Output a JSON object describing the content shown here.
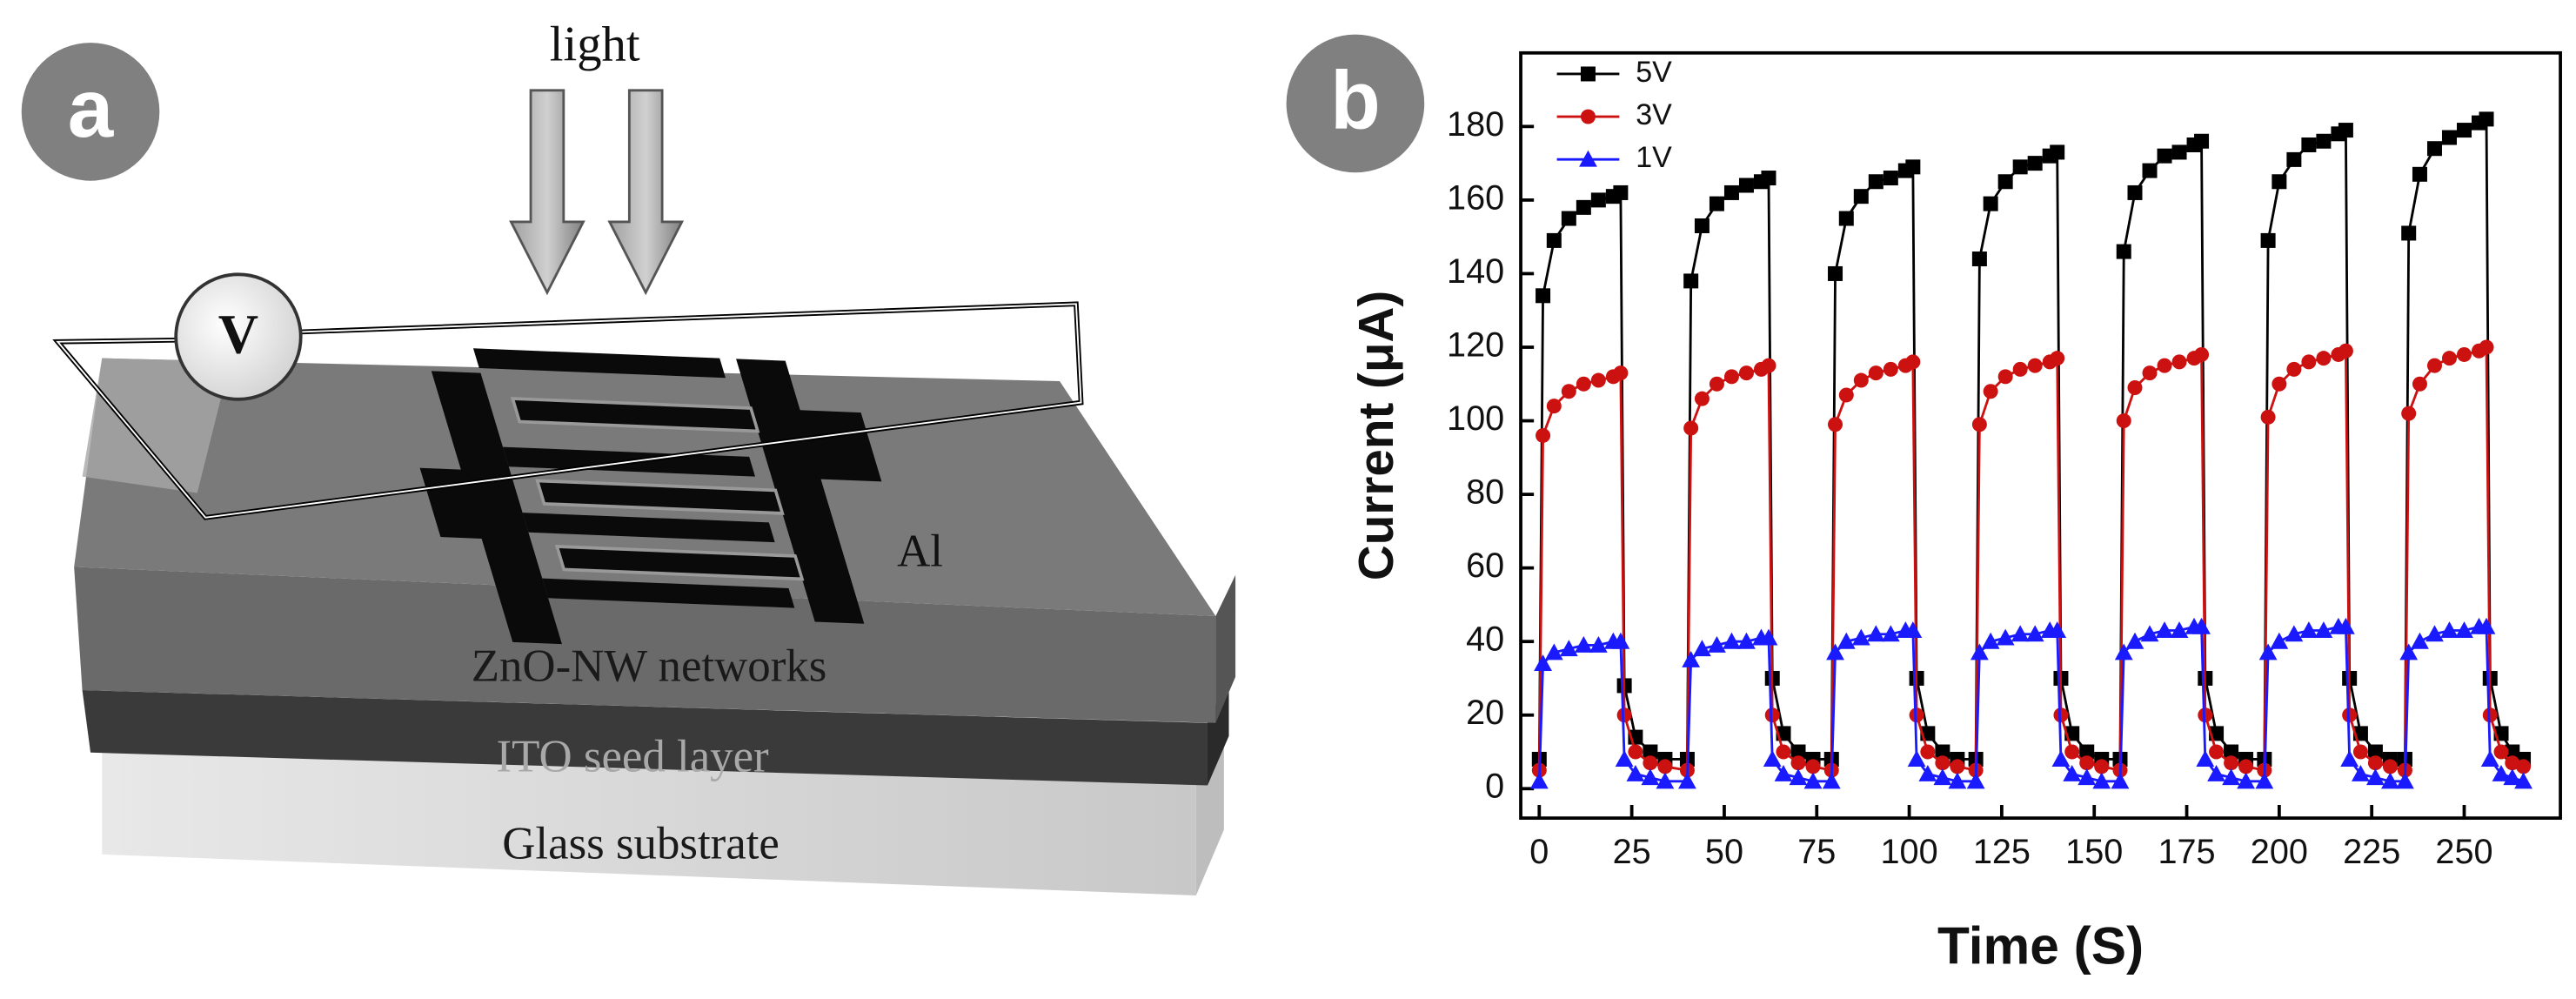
{
  "panel_labels": [
    "a",
    "b"
  ],
  "diagram": {
    "light": "light",
    "voltmeter": "V",
    "electrode": "Al",
    "layers": [
      "ZnO-NW networks",
      "ITO seed layer",
      "Glass substrate"
    ]
  },
  "chart_data": {
    "type": "line",
    "x_label": "Time (S)",
    "y_label": "Current (μA)",
    "xlim": [
      -5,
      276
    ],
    "xticks": [
      0,
      25,
      50,
      75,
      100,
      125,
      150,
      175,
      200,
      225,
      250
    ],
    "ylim": [
      -8,
      200
    ],
    "yticks": [
      0,
      20,
      40,
      60,
      80,
      100,
      120,
      140,
      160,
      180
    ],
    "legend": "upper left",
    "x": [
      0,
      1,
      4,
      8,
      12,
      16,
      20,
      22,
      23,
      26,
      30,
      34,
      40,
      41,
      44,
      48,
      52,
      56,
      60,
      62,
      63,
      66,
      70,
      74,
      79,
      80,
      83,
      87,
      91,
      95,
      99,
      101,
      102,
      105,
      109,
      113,
      118,
      119,
      122,
      126,
      130,
      134,
      138,
      140,
      141,
      144,
      148,
      152,
      157,
      158,
      161,
      165,
      169,
      173,
      177,
      179,
      180,
      183,
      187,
      191,
      196,
      197,
      200,
      204,
      208,
      212,
      216,
      218,
      219,
      222,
      226,
      230,
      234,
      235,
      238,
      242,
      246,
      250,
      254,
      256,
      257,
      260,
      263,
      266
    ],
    "series": [
      {
        "name": "5V",
        "color": "#000000",
        "marker": "square",
        "values": [
          8,
          134,
          149,
          155,
          158,
          160,
          161,
          162,
          28,
          14,
          10,
          8,
          8,
          138,
          153,
          159,
          162,
          164,
          165,
          166,
          30,
          15,
          10,
          8,
          8,
          140,
          155,
          161,
          165,
          166,
          168,
          169,
          30,
          15,
          10,
          8,
          8,
          144,
          159,
          165,
          169,
          170,
          172,
          173,
          30,
          15,
          10,
          8,
          8,
          146,
          162,
          168,
          172,
          173,
          175,
          176,
          30,
          15,
          10,
          8,
          8,
          149,
          165,
          171,
          175,
          176,
          178,
          179,
          30,
          15,
          10,
          8,
          8,
          151,
          167,
          174,
          177,
          179,
          181,
          182,
          30,
          15,
          10,
          8
        ]
      },
      {
        "name": "3V",
        "color": "#cc1111",
        "marker": "circle",
        "values": [
          5,
          96,
          104,
          108,
          110,
          111,
          112,
          113,
          20,
          10,
          7,
          6,
          5,
          98,
          106,
          110,
          112,
          113,
          114,
          115,
          20,
          10,
          7,
          6,
          5,
          99,
          107,
          111,
          113,
          114,
          115,
          116,
          20,
          10,
          7,
          6,
          5,
          99,
          108,
          112,
          114,
          115,
          116,
          117,
          20,
          10,
          7,
          6,
          5,
          100,
          109,
          113,
          115,
          116,
          117,
          118,
          20,
          10,
          7,
          6,
          5,
          101,
          110,
          114,
          116,
          117,
          118,
          119,
          20,
          10,
          7,
          6,
          5,
          102,
          110,
          115,
          117,
          118,
          119,
          120,
          20,
          10,
          7,
          6
        ]
      },
      {
        "name": "1V",
        "color": "#1a1aff",
        "marker": "triangle",
        "values": [
          2,
          34,
          37,
          38,
          39,
          39,
          40,
          40,
          8,
          4,
          3,
          2,
          2,
          35,
          38,
          39,
          40,
          40,
          41,
          41,
          8,
          4,
          3,
          2,
          2,
          37,
          40,
          41,
          42,
          42,
          43,
          43,
          8,
          4,
          3,
          2,
          2,
          37,
          40,
          41,
          42,
          42,
          43,
          43,
          8,
          4,
          3,
          2,
          2,
          37,
          40,
          42,
          43,
          43,
          44,
          44,
          8,
          4,
          3,
          2,
          2,
          37,
          40,
          42,
          43,
          43,
          44,
          44,
          8,
          4,
          3,
          2,
          2,
          37,
          40,
          42,
          43,
          43,
          44,
          44,
          8,
          4,
          3,
          2
        ]
      }
    ]
  }
}
